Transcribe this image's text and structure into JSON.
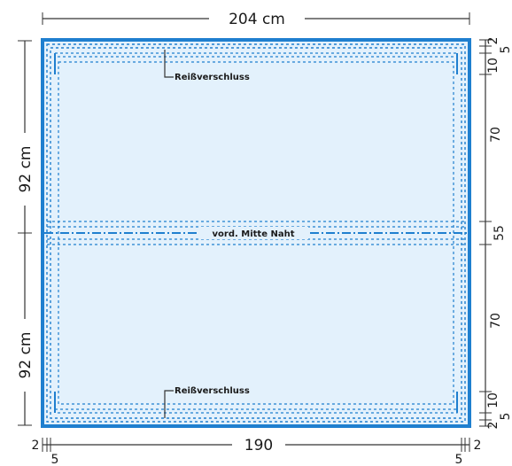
{
  "dimensions": {
    "top_width": "204 cm",
    "bottom_width": "190",
    "left_upper_height": "92 cm",
    "left_lower_height": "92 cm",
    "bottom_left_2": "2",
    "bottom_left_5": "5",
    "bottom_right_2": "2",
    "bottom_right_5": "5",
    "right_top_2": "2",
    "right_top_5": "5",
    "right_top_10": "10",
    "right_upper_70": "70",
    "right_middle_55": "55",
    "right_lower_70": "70",
    "right_bottom_10": "10",
    "right_bottom_2": "2",
    "right_bottom_5": "5"
  },
  "labels": {
    "zipper_top": "Reißverschluss",
    "zipper_bottom": "Reißverschluss",
    "center_seam": "vord. Mitte   Naht"
  },
  "colors": {
    "panel_fill": "#e3f1fc",
    "outline": "#1f7fcf",
    "dash": "#1f7fcf",
    "dim_line": "#333333"
  }
}
